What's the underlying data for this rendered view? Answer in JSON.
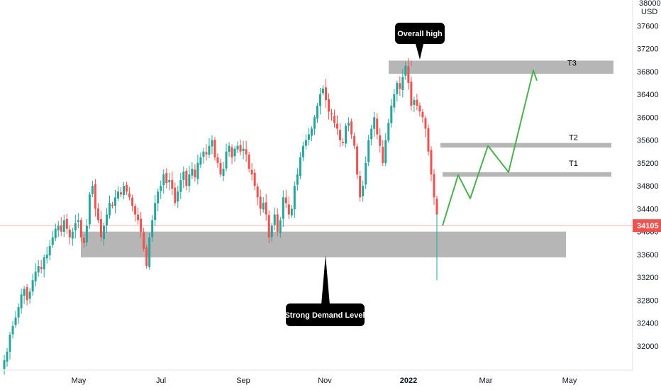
{
  "chart_data": {
    "type": "candlestick",
    "currency": "USD",
    "ylim": [
      31600,
      38000
    ],
    "y_ticks": [
      32000,
      32400,
      32800,
      33200,
      33600,
      34000,
      34400,
      34800,
      35200,
      35600,
      36000,
      36400,
      36800,
      37200,
      37600,
      38000
    ],
    "x_ticks": [
      "May",
      "Jul",
      "Sep",
      "Nov",
      "2022",
      "Mar",
      "May"
    ],
    "last_price": 34105,
    "colors": {
      "up": "#26a69a",
      "down": "#ef5350",
      "zone": "#b2b2b2",
      "projection": "#4caf50",
      "price_line": "#ef5350"
    },
    "zones": [
      {
        "label": "T3",
        "low": 36760,
        "high": 36990
      },
      {
        "label": "T2",
        "low": 35470,
        "high": 35550
      },
      {
        "label": "T1",
        "low": 34960,
        "high": 35040
      },
      {
        "label": "",
        "low": 33550,
        "high": 34000
      }
    ],
    "annotations": [
      {
        "text": "Overall high",
        "price": 36950,
        "pointer": "down"
      },
      {
        "text": "Strong Demand Level",
        "price": 33600,
        "pointer": "up"
      }
    ],
    "projection_path": [
      34105,
      34990,
      34580,
      35500,
      35040,
      36820,
      36640
    ],
    "series_ohlc_description": "Daily OHLC bars from mid-March 2021 to mid-January 2022",
    "closes": [
      31750,
      31900,
      32200,
      32350,
      32500,
      32680,
      32900,
      33000,
      32800,
      32950,
      33150,
      33300,
      33400,
      33350,
      33550,
      33600,
      33750,
      33900,
      34050,
      34100,
      34000,
      34200,
      34050,
      33900,
      34000,
      34150,
      34200,
      33900,
      33800,
      34100,
      34650,
      34800,
      34400,
      34200,
      33900,
      34100,
      34300,
      34500,
      34450,
      34600,
      34700,
      34650,
      34800,
      34700,
      34600,
      34450,
      34300,
      34200,
      34000,
      33700,
      33400,
      33900,
      34200,
      34500,
      34700,
      34800,
      35000,
      34850,
      34900,
      34750,
      34500,
      34700,
      34900,
      35050,
      34800,
      35000,
      35100,
      34950,
      35200,
      35300,
      35400,
      35350,
      35500,
      35600,
      35300,
      35200,
      35000,
      35100,
      35400,
      35500,
      35300,
      35450,
      35500,
      35400,
      35450,
      35350,
      35100,
      35000,
      34800,
      34600,
      34400,
      34500,
      34300,
      33900,
      34100,
      34300,
      34000,
      34200,
      34600,
      34500,
      34300,
      34400,
      34800,
      35000,
      35300,
      35500,
      35600,
      35700,
      35800,
      36000,
      36200,
      36400,
      36500,
      36300,
      36100,
      36050,
      35900,
      35800,
      35600,
      35550,
      35850,
      35900,
      35700,
      35500,
      35000,
      34600,
      34800,
      35200,
      35600,
      35800,
      36000,
      35700,
      35500,
      35200,
      35600,
      35900,
      36200,
      36400,
      36600,
      36500,
      36700,
      36900,
      36600,
      36200,
      36300,
      36200,
      36100,
      36000,
      35800,
      35400,
      35000,
      34600,
      34300
    ]
  }
}
